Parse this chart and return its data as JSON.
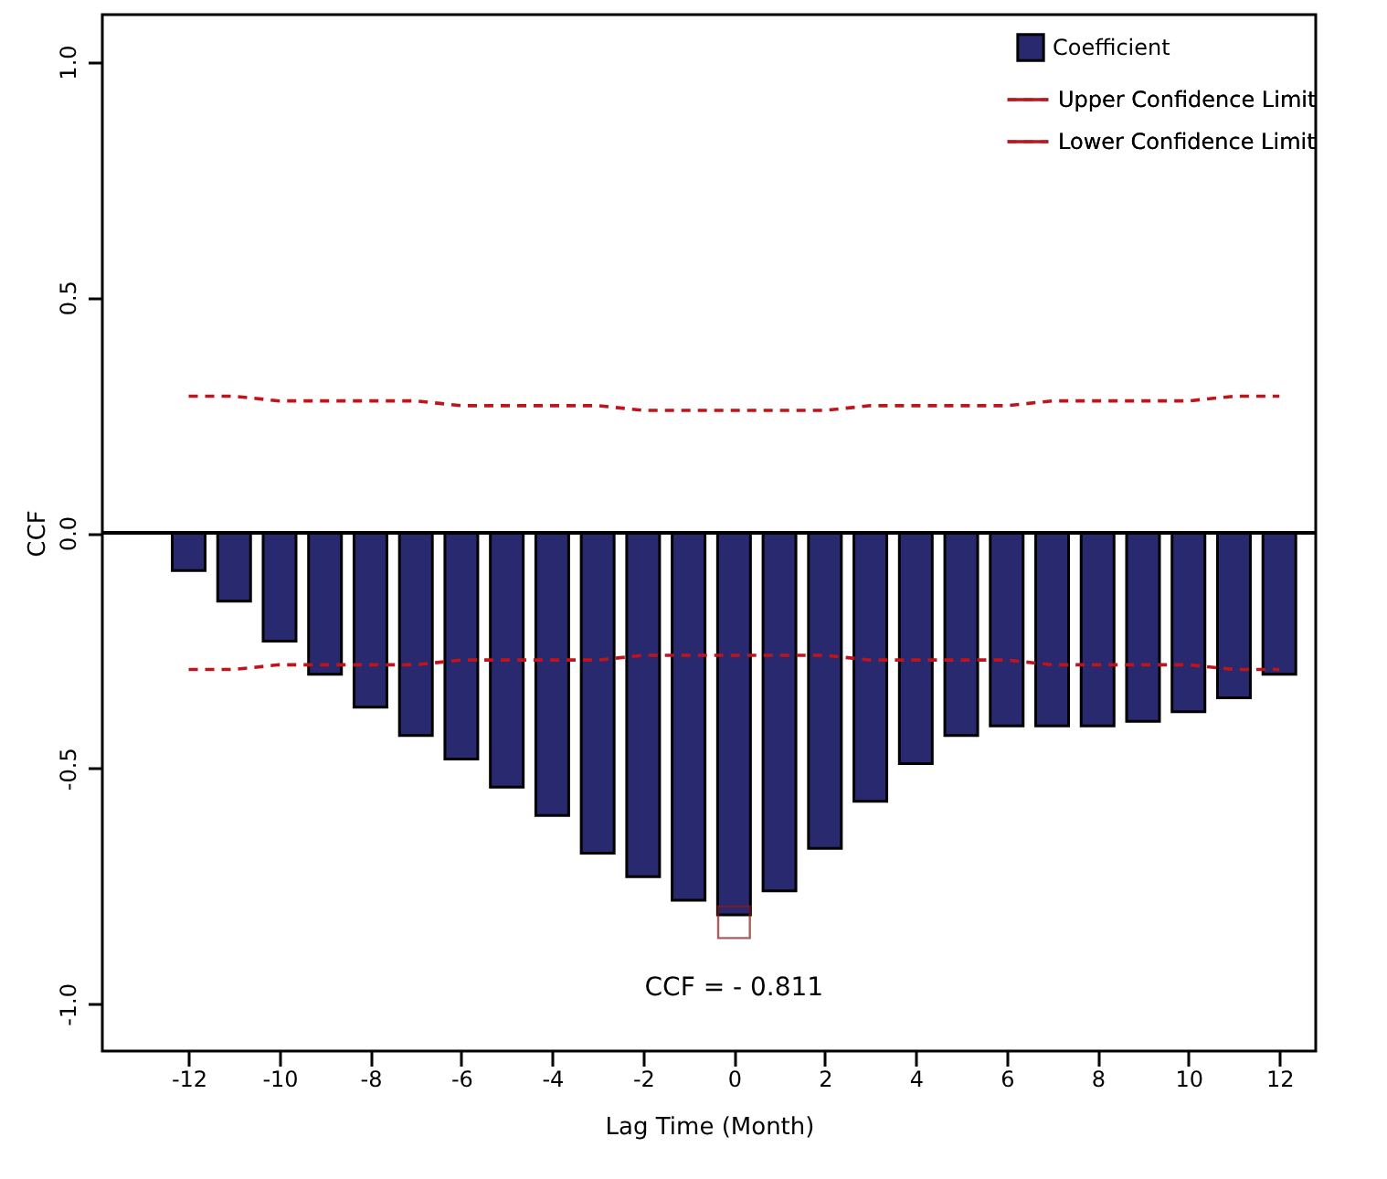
{
  "chart_data": {
    "type": "bar",
    "xlabel": "Lag Time (Month)",
    "ylabel": "CCF",
    "x": [
      -12,
      -11,
      -10,
      -9,
      -8,
      -7,
      -6,
      -5,
      -4,
      -3,
      -2,
      -1,
      0,
      1,
      2,
      3,
      4,
      5,
      6,
      7,
      8,
      9,
      10,
      11,
      12
    ],
    "series": [
      {
        "name": "Coefficient",
        "color": "#28296e",
        "values": [
          -0.08,
          -0.145,
          -0.23,
          -0.3,
          -0.37,
          -0.43,
          -0.48,
          -0.54,
          -0.6,
          -0.68,
          -0.73,
          -0.78,
          -0.811,
          -0.76,
          -0.67,
          -0.57,
          -0.49,
          -0.43,
          -0.41,
          -0.41,
          -0.41,
          -0.4,
          -0.38,
          -0.35,
          -0.3
        ]
      },
      {
        "name": "Upper Confidence Limit",
        "type": "line",
        "color": "#c0141c",
        "line_style": "dashed",
        "values": [
          0.29,
          0.29,
          0.28,
          0.28,
          0.28,
          0.28,
          0.27,
          0.27,
          0.27,
          0.27,
          0.26,
          0.26,
          0.26,
          0.26,
          0.26,
          0.27,
          0.27,
          0.27,
          0.27,
          0.28,
          0.28,
          0.28,
          0.28,
          0.29,
          0.29
        ]
      },
      {
        "name": "Lower Confidence Limit",
        "type": "line",
        "color": "#c0141c",
        "line_style": "dashed",
        "values": [
          -0.29,
          -0.29,
          -0.28,
          -0.28,
          -0.28,
          -0.28,
          -0.27,
          -0.27,
          -0.27,
          -0.27,
          -0.26,
          -0.26,
          -0.26,
          -0.26,
          -0.26,
          -0.27,
          -0.27,
          -0.27,
          -0.27,
          -0.28,
          -0.28,
          -0.28,
          -0.28,
          -0.29,
          -0.29
        ]
      }
    ],
    "xlim": [
      -13.9,
      12.8
    ],
    "xticks": [
      -12,
      -10,
      -8,
      -6,
      -4,
      -2,
      0,
      2,
      4,
      6,
      8,
      10,
      12
    ],
    "ylim": [
      -1.1,
      1.1
    ],
    "yticks": [
      {
        "value": -1,
        "label": "-1.0"
      },
      {
        "value": -0.5,
        "label": "-0.5"
      },
      {
        "value": 0,
        "label": "0.0"
      },
      {
        "value": 0.5,
        "label": "0.5"
      },
      {
        "value": 1,
        "label": "1.0"
      }
    ],
    "ref_lines": [
      {
        "axis": "y",
        "value": 0,
        "color": "#000000"
      }
    ],
    "annotations": [
      {
        "text": "CCF = - 0.811",
        "x": 0,
        "y": -0.811
      }
    ],
    "grid": false,
    "legend": "top right"
  }
}
